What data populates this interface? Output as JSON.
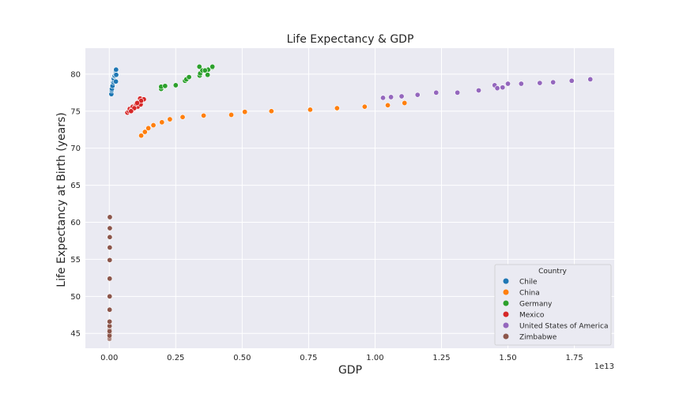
{
  "chart_data": {
    "type": "scatter",
    "title": "Life Expectancy & GDP",
    "xlabel": "GDP",
    "ylabel": "Life Expectancy at Birth (years)",
    "x_offset_label": "1e13",
    "xlim": [
      -0.09,
      1.9
    ],
    "ylim": [
      43.0,
      83.5
    ],
    "x_unit_note": "x values in units of 1e13 GDP",
    "xticks": [
      {
        "value": 0.0,
        "label": "0.00"
      },
      {
        "value": 0.25,
        "label": "0.25"
      },
      {
        "value": 0.5,
        "label": "0.50"
      },
      {
        "value": 0.75,
        "label": "0.75"
      },
      {
        "value": 1.0,
        "label": "1.00"
      },
      {
        "value": 1.25,
        "label": "1.25"
      },
      {
        "value": 1.5,
        "label": "1.50"
      },
      {
        "value": 1.75,
        "label": "1.75"
      }
    ],
    "yticks": [
      {
        "value": 45,
        "label": "45"
      },
      {
        "value": 50,
        "label": "50"
      },
      {
        "value": 55,
        "label": "55"
      },
      {
        "value": 60,
        "label": "60"
      },
      {
        "value": 65,
        "label": "65"
      },
      {
        "value": 70,
        "label": "70"
      },
      {
        "value": 75,
        "label": "75"
      },
      {
        "value": 80,
        "label": "80"
      }
    ],
    "grid": true,
    "legend": {
      "title": "Country",
      "position": "lower-right"
    },
    "series": [
      {
        "name": "Chile",
        "color": "#1f77b4",
        "points": [
          [
            0.0078,
            77.3
          ],
          [
            0.009,
            77.8
          ],
          [
            0.0097,
            78.0
          ],
          [
            0.012,
            78.4
          ],
          [
            0.0152,
            78.9
          ],
          [
            0.018,
            79.1
          ],
          [
            0.0165,
            79.4
          ],
          [
            0.019,
            79.7
          ],
          [
            0.02,
            79.8
          ],
          [
            0.023,
            80.0
          ],
          [
            0.025,
            80.1
          ],
          [
            0.024,
            80.3
          ],
          [
            0.024,
            80.5
          ],
          [
            0.0255,
            80.6
          ],
          [
            0.0248,
            79.0
          ],
          [
            0.026,
            79.9
          ]
        ]
      },
      {
        "name": "China",
        "color": "#ff7f0e",
        "points": [
          [
            0.12,
            71.7
          ],
          [
            0.134,
            72.2
          ],
          [
            0.147,
            72.7
          ],
          [
            0.166,
            73.1
          ],
          [
            0.198,
            73.5
          ],
          [
            0.228,
            73.9
          ],
          [
            0.276,
            74.2
          ],
          [
            0.355,
            74.4
          ],
          [
            0.459,
            74.5
          ],
          [
            0.51,
            74.9
          ],
          [
            0.61,
            75.0
          ],
          [
            0.756,
            75.2
          ],
          [
            0.857,
            75.4
          ],
          [
            0.961,
            75.6
          ],
          [
            1.048,
            75.8
          ],
          [
            1.111,
            76.1
          ]
        ]
      },
      {
        "name": "Germany",
        "color": "#2ca02c",
        "points": [
          [
            0.195,
            78.0
          ],
          [
            0.195,
            78.3
          ],
          [
            0.21,
            78.4
          ],
          [
            0.25,
            78.5
          ],
          [
            0.285,
            79.1
          ],
          [
            0.29,
            79.3
          ],
          [
            0.3,
            79.6
          ],
          [
            0.34,
            79.8
          ],
          [
            0.342,
            80.1
          ],
          [
            0.35,
            80.5
          ],
          [
            0.339,
            81.0
          ],
          [
            0.37,
            79.9
          ],
          [
            0.372,
            80.6
          ],
          [
            0.388,
            80.9
          ],
          [
            0.36,
            80.5
          ],
          [
            0.388,
            81.0
          ]
        ]
      },
      {
        "name": "Mexico",
        "color": "#d62728",
        "points": [
          [
            0.068,
            74.8
          ],
          [
            0.074,
            75.0
          ],
          [
            0.077,
            75.3
          ],
          [
            0.085,
            75.2
          ],
          [
            0.088,
            75.6
          ],
          [
            0.098,
            75.7
          ],
          [
            0.107,
            75.6
          ],
          [
            0.102,
            76.0
          ],
          [
            0.11,
            76.2
          ],
          [
            0.116,
            76.7
          ],
          [
            0.13,
            76.6
          ],
          [
            0.118,
            75.9
          ],
          [
            0.094,
            75.4
          ],
          [
            0.082,
            75.0
          ],
          [
            0.12,
            76.4
          ],
          [
            0.105,
            76.1
          ]
        ]
      },
      {
        "name": "United States of America",
        "color": "#9467bd",
        "points": [
          [
            1.03,
            76.8
          ],
          [
            1.06,
            76.9
          ],
          [
            1.1,
            77.0
          ],
          [
            1.16,
            77.2
          ],
          [
            1.23,
            77.5
          ],
          [
            1.31,
            77.5
          ],
          [
            1.39,
            77.8
          ],
          [
            1.45,
            78.5
          ],
          [
            1.46,
            78.1
          ],
          [
            1.48,
            78.2
          ],
          [
            1.5,
            78.7
          ],
          [
            1.55,
            78.7
          ],
          [
            1.62,
            78.8
          ],
          [
            1.67,
            78.9
          ],
          [
            1.74,
            79.1
          ],
          [
            1.81,
            79.3
          ]
        ]
      },
      {
        "name": "Zimbabwe",
        "color": "#8c564b",
        "points": [
          [
            0.0007,
            44.3
          ],
          [
            0.0008,
            44.5
          ],
          [
            0.0009,
            45.0
          ],
          [
            0.001,
            45.5
          ],
          [
            0.0011,
            46.0
          ],
          [
            0.0012,
            46.6
          ],
          [
            0.0013,
            48.2
          ],
          [
            0.0014,
            50.0
          ],
          [
            0.0015,
            52.4
          ],
          [
            0.0016,
            54.9
          ],
          [
            0.0018,
            56.6
          ],
          [
            0.0019,
            58.0
          ],
          [
            0.002,
            59.2
          ],
          [
            0.0021,
            60.7
          ],
          [
            0.0009,
            44.7
          ],
          [
            0.001,
            45.3
          ]
        ]
      }
    ]
  }
}
